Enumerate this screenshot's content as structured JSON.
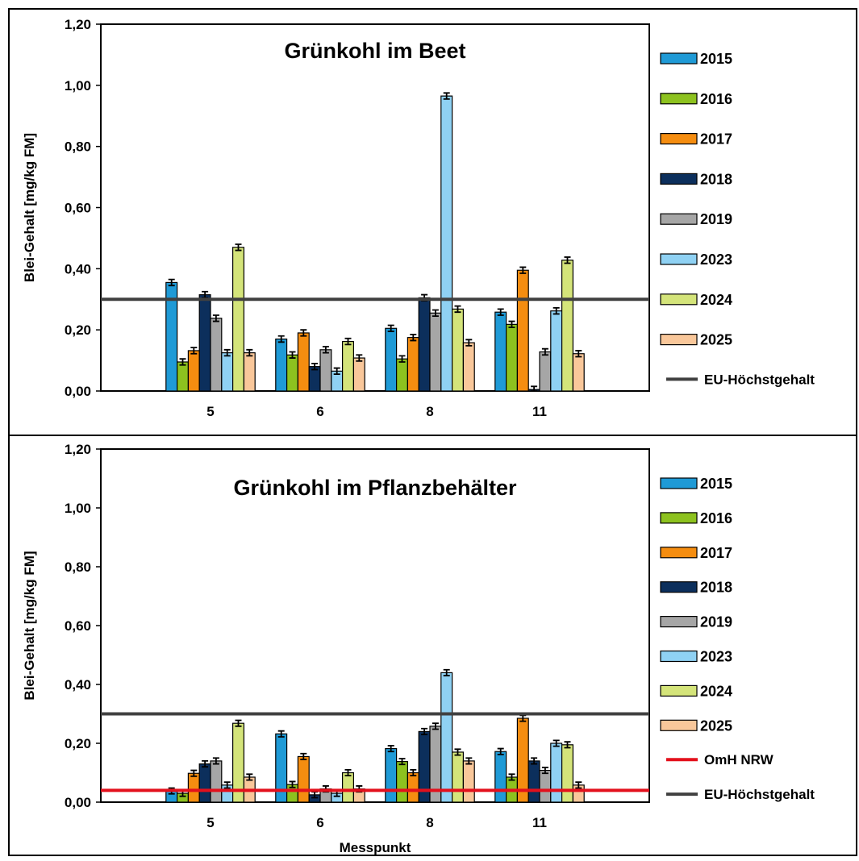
{
  "chart_data": [
    {
      "type": "bar",
      "title": "Grünkohl im Beet",
      "ylabel": "Blei-Gehalt [mg/kg FM]",
      "xlabel": "",
      "ylim": [
        0,
        1.2
      ],
      "yticks": [
        "0,00",
        "0,20",
        "0,40",
        "0,60",
        "0,80",
        "1,00",
        "1,20"
      ],
      "categories": [
        "5",
        "6",
        "8",
        "11"
      ],
      "series": [
        {
          "name": "2015",
          "color": "#1f9ad6",
          "values": [
            0.355,
            0.17,
            0.205,
            0.258
          ]
        },
        {
          "name": "2016",
          "color": "#8dc21f",
          "values": [
            0.095,
            0.118,
            0.105,
            0.218
          ]
        },
        {
          "name": "2017",
          "color": "#f58d10",
          "values": [
            0.132,
            0.19,
            0.175,
            0.395
          ]
        },
        {
          "name": "2018",
          "color": "#0c2f5c",
          "values": [
            0.315,
            0.08,
            0.305,
            0.005
          ]
        },
        {
          "name": "2019",
          "color": "#a6a6a6",
          "values": [
            0.238,
            0.135,
            0.255,
            0.128
          ]
        },
        {
          "name": "2023",
          "color": "#8fd1f3",
          "values": [
            0.125,
            0.065,
            0.965,
            0.262
          ]
        },
        {
          "name": "2024",
          "color": "#d4e47a",
          "values": [
            0.47,
            0.162,
            0.268,
            0.428
          ]
        },
        {
          "name": "2025",
          "color": "#f9c79a",
          "values": [
            0.125,
            0.108,
            0.158,
            0.122
          ]
        }
      ],
      "reference_lines": [
        {
          "name": "EU-Höchstgehalt",
          "value": 0.3,
          "color": "#404040"
        }
      ],
      "grid": false,
      "legend": "right"
    },
    {
      "type": "bar",
      "title": "Grünkohl im Pflanzbehälter",
      "ylabel": "Blei-Gehalt [mg/kg FM]",
      "xlabel": "Messpunkt",
      "ylim": [
        0,
        1.2
      ],
      "yticks": [
        "0,00",
        "0,20",
        "0,40",
        "0,60",
        "0,80",
        "1,00",
        "1,20"
      ],
      "categories": [
        "5",
        "6",
        "8",
        "11"
      ],
      "series": [
        {
          "name": "2015",
          "color": "#1f9ad6",
          "values": [
            0.038,
            0.232,
            0.182,
            0.172
          ]
        },
        {
          "name": "2016",
          "color": "#8dc21f",
          "values": [
            0.03,
            0.06,
            0.138,
            0.085
          ]
        },
        {
          "name": "2017",
          "color": "#f58d10",
          "values": [
            0.098,
            0.155,
            0.1,
            0.285
          ]
        },
        {
          "name": "2018",
          "color": "#0c2f5c",
          "values": [
            0.13,
            0.025,
            0.24,
            0.14
          ]
        },
        {
          "name": "2019",
          "color": "#a6a6a6",
          "values": [
            0.14,
            0.045,
            0.258,
            0.108
          ]
        },
        {
          "name": "2023",
          "color": "#8fd1f3",
          "values": [
            0.058,
            0.03,
            0.44,
            0.2
          ]
        },
        {
          "name": "2024",
          "color": "#d4e47a",
          "values": [
            0.268,
            0.1,
            0.17,
            0.195
          ]
        },
        {
          "name": "2025",
          "color": "#f9c79a",
          "values": [
            0.085,
            0.045,
            0.14,
            0.058
          ]
        }
      ],
      "reference_lines": [
        {
          "name": "OmH NRW",
          "value": 0.04,
          "color": "#e3101c"
        },
        {
          "name": "EU-Höchstgehalt",
          "value": 0.3,
          "color": "#404040"
        }
      ],
      "grid": false,
      "legend": "right"
    }
  ]
}
